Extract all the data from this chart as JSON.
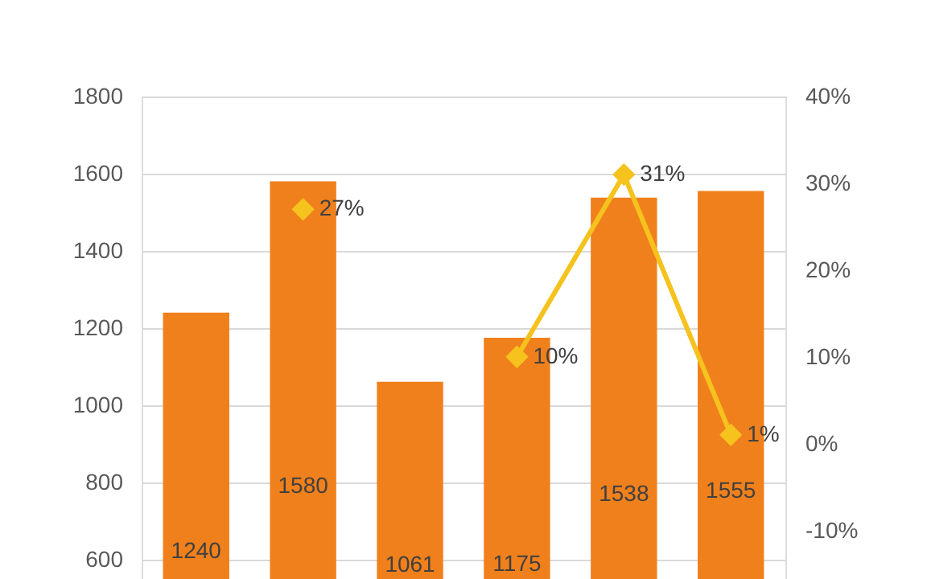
{
  "chart_data": {
    "type": "bar",
    "categories": [
      null,
      null,
      null,
      null,
      null,
      null
    ],
    "series": [
      {
        "color": "#f0801c",
        "values": [
          1240,
          1580,
          1061,
          1175,
          1538,
          1555
        ]
      },
      {
        "type": "line",
        "axis": "y2",
        "color": "#f5c21e",
        "values": [
          null,
          27,
          null,
          10,
          31,
          1
        ],
        "value_labels": [
          null,
          "27%",
          null,
          "10%",
          "31%",
          "1%"
        ],
        "marker": "diamond"
      }
    ],
    "data_labels": true,
    "ylim": [
      550,
      1800
    ],
    "yticks": [
      600,
      800,
      1000,
      1200,
      1400,
      1600,
      1800
    ],
    "y2lim": [
      -15.6,
      40
    ],
    "y2ticks": [
      {
        "value": -10,
        "label": "-10%"
      },
      {
        "value": 0,
        "label": "0%"
      },
      {
        "value": 10,
        "label": "10%"
      },
      {
        "value": 20,
        "label": "20%"
      },
      {
        "value": 30,
        "label": "30%"
      },
      {
        "value": 40,
        "label": "40%"
      }
    ],
    "grid": "y"
  }
}
